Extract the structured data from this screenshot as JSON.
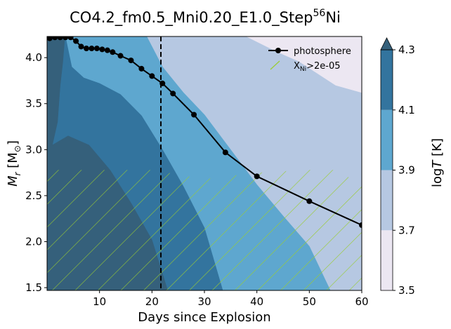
{
  "chart_data": {
    "type": "contourf",
    "title": "CO4.2_fm0.5_Mni0.20_E1.0_Step",
    "title_superscript": "56",
    "title_suffix": "Ni",
    "xlabel": "Days since Explosion",
    "ylabel_main": "M",
    "ylabel_sub": "r",
    "ylabel_unit": "[M",
    "ylabel_unit_sub": "⊙",
    "ylabel_close": "]",
    "xlim": [
      0,
      60
    ],
    "ylim": [
      1.47,
      4.23
    ],
    "xticks": [
      10,
      20,
      30,
      40,
      50,
      60
    ],
    "xtick_labels": [
      "10",
      "20",
      "30",
      "40",
      "50",
      "60"
    ],
    "yticks": [
      1.5,
      2.0,
      2.5,
      3.0,
      3.5,
      4.0
    ],
    "ytick_labels": [
      "1.5",
      "2.0",
      "2.5",
      "3.0",
      "3.5",
      "4.0"
    ],
    "colorbar": {
      "label_prefix": "log",
      "label_var": "T",
      "label_unit": " [K]",
      "levels": [
        3.5,
        3.7,
        3.9,
        4.1,
        4.3
      ],
      "level_labels": [
        "3.5",
        "3.7",
        "3.9",
        "4.1",
        "4.3"
      ],
      "colors": [
        "#ece7f2",
        "#b6c8e2",
        "#5ea7cf",
        "#33749e",
        "#35607b"
      ],
      "extend": "max"
    },
    "regions": [
      {
        "name": "3.7-3.9",
        "color": "#b6c8e2",
        "boundary": [
          [
            0,
            4.23
          ],
          [
            38,
            4.23
          ],
          [
            44,
            4.06
          ],
          [
            48,
            3.96
          ],
          [
            55,
            3.7
          ],
          [
            60,
            3.62
          ],
          [
            60,
            1.47
          ],
          [
            0,
            1.47
          ]
        ]
      },
      {
        "name": "3.9-4.1",
        "color": "#5ea7cf",
        "boundary": [
          [
            0,
            4.23
          ],
          [
            19,
            4.23
          ],
          [
            22,
            3.9
          ],
          [
            26,
            3.62
          ],
          [
            30,
            3.38
          ],
          [
            35,
            3.0
          ],
          [
            40,
            2.62
          ],
          [
            45,
            2.28
          ],
          [
            50,
            1.95
          ],
          [
            54,
            1.47
          ],
          [
            0,
            1.47
          ]
        ]
      },
      {
        "name": "4.1-4.3",
        "color": "#33749e",
        "boundary": [
          [
            0,
            4.23
          ],
          [
            3.5,
            4.23
          ],
          [
            4.7,
            3.9
          ],
          [
            7,
            3.78
          ],
          [
            10,
            3.72
          ],
          [
            14,
            3.6
          ],
          [
            18,
            3.37
          ],
          [
            22,
            3.0
          ],
          [
            26,
            2.6
          ],
          [
            30,
            2.15
          ],
          [
            33.5,
            1.47
          ],
          [
            0,
            1.47
          ]
        ]
      },
      {
        "name": "4.3+",
        "color": "#35607b",
        "boundary": [
          [
            0,
            4.23
          ],
          [
            3.4,
            4.23
          ],
          [
            3.0,
            3.95
          ],
          [
            2.5,
            3.7
          ],
          [
            2.0,
            3.3
          ],
          [
            1.0,
            3.05
          ],
          [
            4,
            3.15
          ],
          [
            8,
            3.05
          ],
          [
            12,
            2.78
          ],
          [
            16,
            2.42
          ],
          [
            20,
            2.02
          ],
          [
            23,
            1.47
          ],
          [
            0,
            1.47
          ]
        ]
      },
      {
        "name": "lt-3.7",
        "color": "#ece7f2",
        "boundary": [
          [
            38,
            4.23
          ],
          [
            60,
            4.23
          ],
          [
            60,
            3.62
          ],
          [
            55,
            3.7
          ],
          [
            48,
            3.96
          ],
          [
            44,
            4.06
          ]
        ]
      }
    ],
    "hatch_region": {
      "label": "X",
      "label_sub": "Ni",
      "label_suffix": ">2e-05",
      "boundary": [
        [
          0,
          2.78
        ],
        [
          20,
          2.78
        ],
        [
          30,
          2.68
        ],
        [
          40,
          2.75
        ],
        [
          50,
          2.78
        ],
        [
          55,
          2.78
        ],
        [
          60,
          2.62
        ],
        [
          60,
          1.47
        ],
        [
          0,
          1.47
        ]
      ],
      "color": "#9acd32"
    },
    "series": [
      {
        "name": "photosphere",
        "x": [
          0.5,
          1.5,
          2.5,
          3.5,
          4.5,
          5.5,
          6.5,
          7.5,
          8.5,
          9.5,
          10.5,
          11.5,
          12.5,
          14,
          16,
          18,
          20,
          22,
          24,
          28,
          34,
          40,
          50,
          60
        ],
        "y": [
          4.21,
          4.22,
          4.22,
          4.22,
          4.22,
          4.18,
          4.12,
          4.1,
          4.1,
          4.1,
          4.09,
          4.08,
          4.06,
          4.02,
          3.97,
          3.88,
          3.8,
          3.72,
          3.61,
          3.38,
          2.97,
          2.71,
          2.44,
          2.18
        ],
        "color": "#000000"
      }
    ],
    "vline": {
      "x": 21.7,
      "style": "dashed",
      "color": "#000000"
    },
    "legend": {
      "position": "top-right",
      "entries": [
        "photosphere",
        "XNi>2e-05"
      ]
    }
  }
}
